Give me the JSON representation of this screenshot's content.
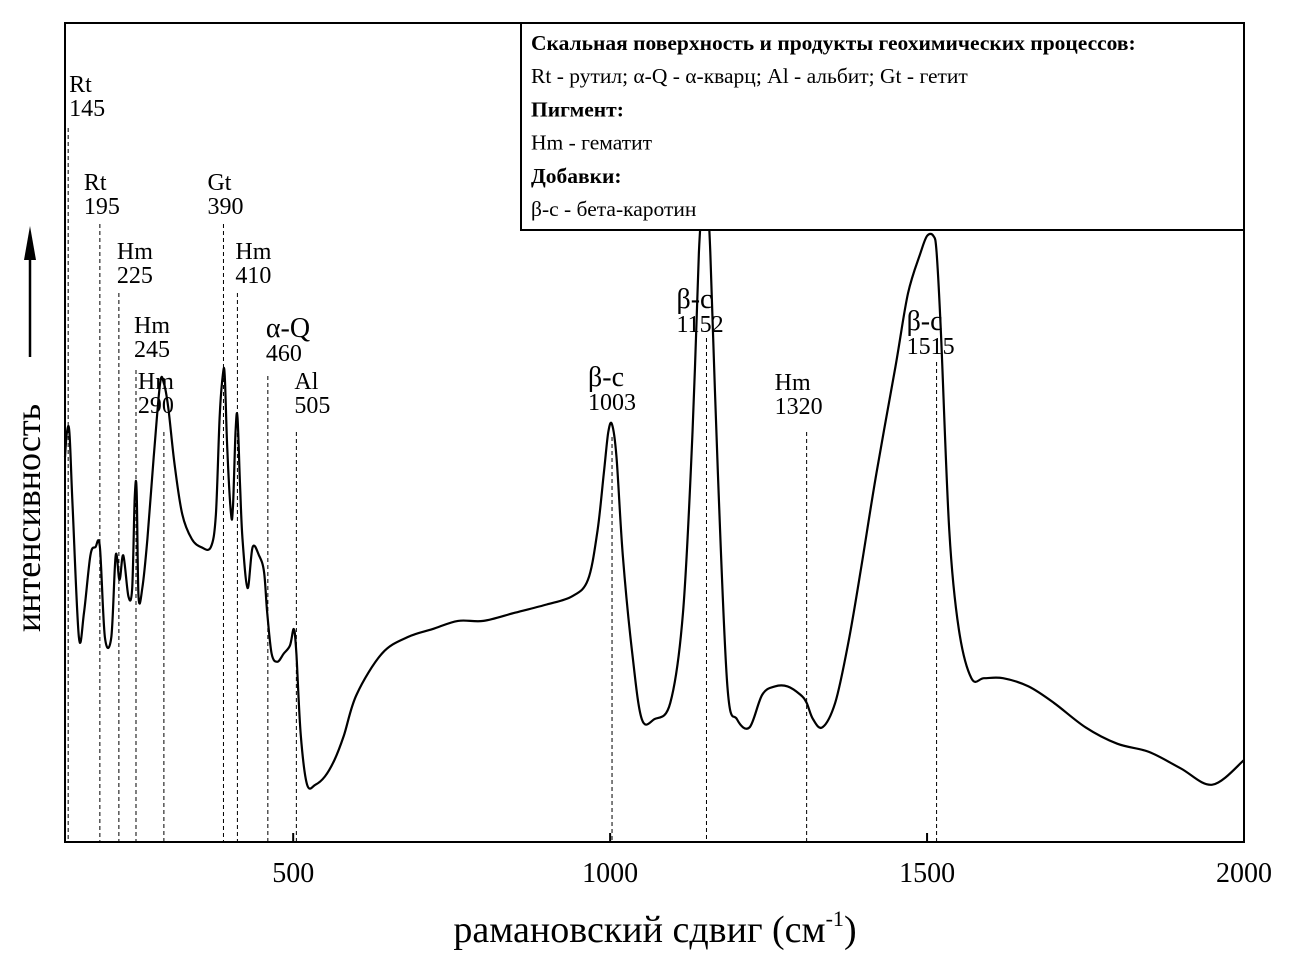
{
  "chart_data": {
    "type": "line",
    "xlabel": "рамановский сдвиг (см",
    "xlabel_sup": "-1",
    "xlabel_close": ")",
    "ylabel": "интенсивность",
    "xlim": [
      140,
      2000
    ],
    "ylim": [
      0,
      1
    ],
    "xticks": [
      500,
      1000,
      1500,
      2000
    ],
    "xtick_labels": [
      "500",
      "1000",
      "1500",
      "2000"
    ],
    "grid": false,
    "legend_position": "top-right",
    "legend": [
      {
        "text": "Скальная поверхность и продукты геохимических процессов:",
        "bold": true
      },
      {
        "text": "Rt - рутил; α-Q - α-кварц; Al - альбит; Gt - гетит",
        "bold": false
      },
      {
        "text": "Пигмент:",
        "bold": true
      },
      {
        "text": "Hm - гематит",
        "bold": false
      },
      {
        "text": "Добавки:",
        "bold": true
      },
      {
        "text": "β-с - бета-каротин",
        "bold": false
      }
    ],
    "annotations": [
      {
        "name": "Rt",
        "wavenumber": "145",
        "x": 145
      },
      {
        "name": "Rt",
        "wavenumber": "195",
        "x": 195
      },
      {
        "name": "Hm",
        "wavenumber": "225",
        "x": 225
      },
      {
        "name": "Hm",
        "wavenumber": "245",
        "x": 252
      },
      {
        "name": "Hm",
        "wavenumber": "290",
        "x": 296
      },
      {
        "name": "Gt",
        "wavenumber": "390",
        "x": 390
      },
      {
        "name": "Hm",
        "wavenumber": "410",
        "x": 412
      },
      {
        "name": "α-Q",
        "wavenumber": "460",
        "x": 460
      },
      {
        "name": "Al",
        "wavenumber": "505",
        "x": 505
      },
      {
        "name": "β-с",
        "wavenumber": "1003",
        "x": 1003
      },
      {
        "name": "β-с",
        "wavenumber": "1152",
        "x": 1152
      },
      {
        "name": "Hm",
        "wavenumber": "1320",
        "x": 1310
      },
      {
        "name": "β-с",
        "wavenumber": "1515",
        "x": 1515
      }
    ],
    "series": [
      {
        "x": [
          140,
          143,
          147,
          152,
          162,
          170,
          180,
          188,
          195,
          203,
          213,
          220,
          226,
          232,
          240,
          246,
          250,
          253,
          256,
          262,
          270,
          280,
          290,
          296,
          303,
          313,
          325,
          340,
          355,
          370,
          378,
          384,
          389,
          392,
          396,
          402,
          405,
          409,
          412,
          416,
          420,
          428,
          436,
          446,
          454,
          459,
          466,
          475,
          485,
          495,
          501,
          505,
          512,
          522,
          535,
          550,
          565,
          580,
          600,
          640,
          680,
          720,
          760,
          800,
          850,
          900,
          940,
          965,
          980,
          990,
          997,
          1003,
          1010,
          1020,
          1035,
          1050,
          1070,
          1095,
          1115,
          1130,
          1140,
          1147,
          1152,
          1158,
          1170,
          1185,
          1200,
          1220,
          1240,
          1260,
          1280,
          1300,
          1310,
          1320,
          1335,
          1355,
          1375,
          1395,
          1420,
          1450,
          1470,
          1490,
          1500,
          1510,
          1515,
          1522,
          1535,
          1550,
          1570,
          1590,
          1620,
          1660,
          1700,
          1750,
          1800,
          1850,
          1900,
          1950,
          2000
        ],
        "y": [
          0.47,
          0.5,
          0.5,
          0.41,
          0.25,
          0.28,
          0.35,
          0.36,
          0.36,
          0.25,
          0.25,
          0.35,
          0.32,
          0.35,
          0.3,
          0.31,
          0.42,
          0.43,
          0.3,
          0.31,
          0.37,
          0.47,
          0.56,
          0.56,
          0.53,
          0.46,
          0.4,
          0.37,
          0.36,
          0.36,
          0.4,
          0.52,
          0.57,
          0.57,
          0.48,
          0.4,
          0.41,
          0.5,
          0.52,
          0.44,
          0.37,
          0.31,
          0.36,
          0.35,
          0.33,
          0.28,
          0.23,
          0.22,
          0.23,
          0.24,
          0.26,
          0.23,
          0.13,
          0.07,
          0.07,
          0.08,
          0.1,
          0.13,
          0.18,
          0.23,
          0.25,
          0.26,
          0.27,
          0.27,
          0.28,
          0.29,
          0.3,
          0.32,
          0.38,
          0.45,
          0.5,
          0.51,
          0.47,
          0.35,
          0.23,
          0.15,
          0.15,
          0.17,
          0.28,
          0.5,
          0.72,
          0.79,
          0.8,
          0.72,
          0.45,
          0.19,
          0.15,
          0.14,
          0.18,
          0.19,
          0.19,
          0.18,
          0.17,
          0.15,
          0.14,
          0.17,
          0.24,
          0.33,
          0.45,
          0.58,
          0.67,
          0.72,
          0.74,
          0.74,
          0.72,
          0.62,
          0.38,
          0.26,
          0.2,
          0.2,
          0.2,
          0.19,
          0.17,
          0.14,
          0.12,
          0.11,
          0.09,
          0.07,
          0.1
        ]
      }
    ]
  }
}
